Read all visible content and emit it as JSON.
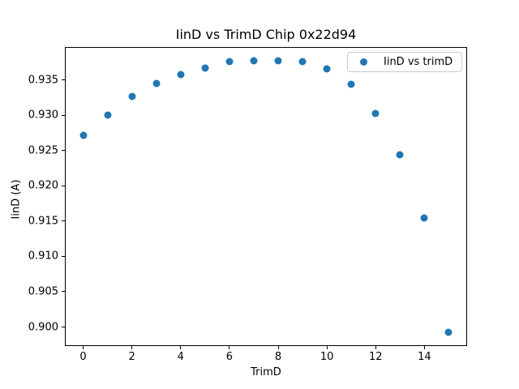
{
  "chart_data": {
    "type": "scatter",
    "title": "IinD vs TrimD Chip 0x22d94",
    "xlabel": "TrimD",
    "ylabel": "IinD (A)",
    "grid": false,
    "legend_position": "upper right",
    "legend": [
      {
        "label": "IinD vs trimD",
        "marker": "circle",
        "color": "#1f77b4"
      }
    ],
    "series": [
      {
        "name": "IinD vs trimD",
        "color": "#1f77b4",
        "x": [
          0,
          1,
          2,
          3,
          4,
          5,
          6,
          7,
          8,
          9,
          10,
          11,
          12,
          13,
          14,
          15
        ],
        "y": [
          0.9272,
          0.9301,
          0.9327,
          0.9345,
          0.9358,
          0.9367,
          0.9376,
          0.9377,
          0.9378,
          0.9376,
          0.9366,
          0.9344,
          0.9303,
          0.9244,
          0.9154,
          0.8992
        ]
      }
    ],
    "xlim": [
      -0.75,
      15.75
    ],
    "ylim": [
      0.8973,
      0.9397
    ],
    "xticks": {
      "values": [
        0,
        2,
        4,
        6,
        8,
        10,
        12,
        14
      ],
      "labels": [
        "0",
        "2",
        "4",
        "6",
        "8",
        "10",
        "12",
        "14"
      ]
    },
    "yticks": {
      "values": [
        0.9,
        0.905,
        0.91,
        0.915,
        0.92,
        0.925,
        0.93,
        0.935
      ],
      "labels": [
        "0.900",
        "0.905",
        "0.910",
        "0.915",
        "0.920",
        "0.925",
        "0.930",
        "0.935"
      ]
    }
  }
}
